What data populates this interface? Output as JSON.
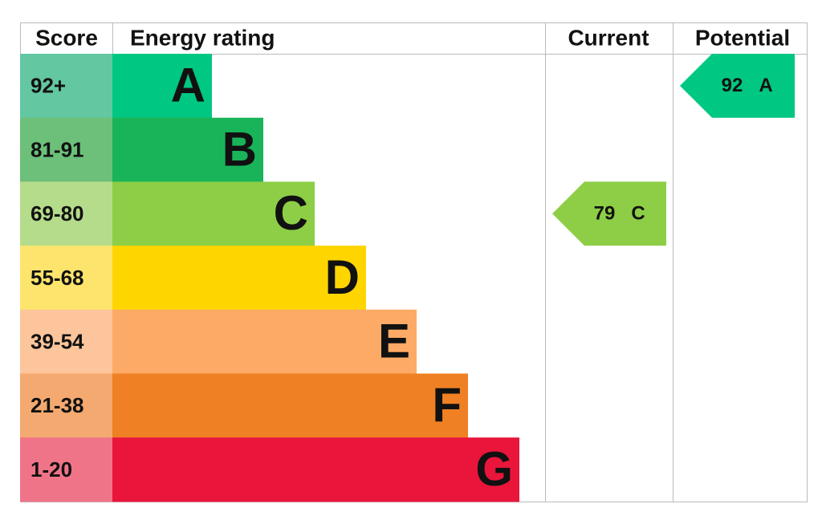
{
  "header": {
    "score": "Score",
    "rating": "Energy rating",
    "current": "Current",
    "potential": "Potential"
  },
  "bands": [
    {
      "score": "92+",
      "letter": "A"
    },
    {
      "score": "81-91",
      "letter": "B"
    },
    {
      "score": "69-80",
      "letter": "C"
    },
    {
      "score": "55-68",
      "letter": "D"
    },
    {
      "score": "39-54",
      "letter": "E"
    },
    {
      "score": "21-38",
      "letter": "F"
    },
    {
      "score": "1-20",
      "letter": "G"
    }
  ],
  "current": {
    "value": "79",
    "letter": "C"
  },
  "potential": {
    "value": "92",
    "letter": "A"
  }
}
